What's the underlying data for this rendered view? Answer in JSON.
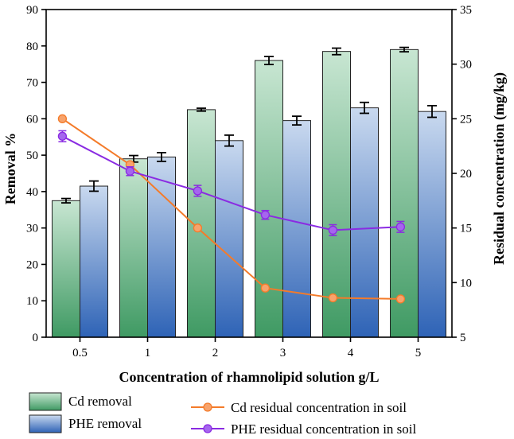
{
  "chart_data": {
    "type": "bar+line",
    "categories": [
      "0.5",
      "1",
      "2",
      "3",
      "4",
      "5"
    ],
    "xlabel": "Concentration of rhamnolipid solution g/L",
    "ylabel_left": "Removal %",
    "ylabel_right": "Residual concentration (mg/kg)",
    "ylim_left": [
      0,
      90
    ],
    "yticks_left": [
      0,
      10,
      20,
      30,
      40,
      50,
      60,
      70,
      80,
      90
    ],
    "ylim_right": [
      5,
      35
    ],
    "yticks_right": [
      5,
      10,
      15,
      20,
      25,
      30,
      35
    ],
    "bar_series": [
      {
        "name": "Cd removal",
        "axis": "left",
        "values": [
          37.5,
          49.0,
          62.5,
          76.0,
          78.5,
          79.0
        ],
        "errors": [
          0.6,
          0.9,
          0.4,
          1.1,
          0.9,
          0.6
        ],
        "color_top": "#c8e6d2",
        "color_bottom": "#3f9a63"
      },
      {
        "name": "PHE removal",
        "axis": "left",
        "values": [
          41.5,
          49.5,
          54.0,
          59.5,
          63.0,
          62.0
        ],
        "errors": [
          1.4,
          1.2,
          1.5,
          1.2,
          1.5,
          1.6
        ],
        "color_top": "#c9d9ef",
        "color_bottom": "#2e63b6"
      }
    ],
    "line_series": [
      {
        "name": "Cd residual concentration in soil",
        "axis": "right",
        "x_index": [
          0.24,
          1.24,
          2.24,
          3.24,
          4.24,
          5.24
        ],
        "values": [
          25.0,
          20.8,
          15.0,
          9.5,
          8.6,
          8.5
        ],
        "color": "#f47b2a",
        "marker_color": "#f7a36c"
      },
      {
        "name": "PHE residual concentration in soil",
        "axis": "right",
        "x_index": [
          0.24,
          1.24,
          2.24,
          3.24,
          4.24,
          5.24
        ],
        "values": [
          23.4,
          20.2,
          18.4,
          16.2,
          14.8,
          15.1
        ],
        "errors": [
          0.5,
          0.4,
          0.5,
          0.4,
          0.5,
          0.5
        ],
        "color": "#8a2be2",
        "marker_color": "#a566ee"
      }
    ]
  }
}
